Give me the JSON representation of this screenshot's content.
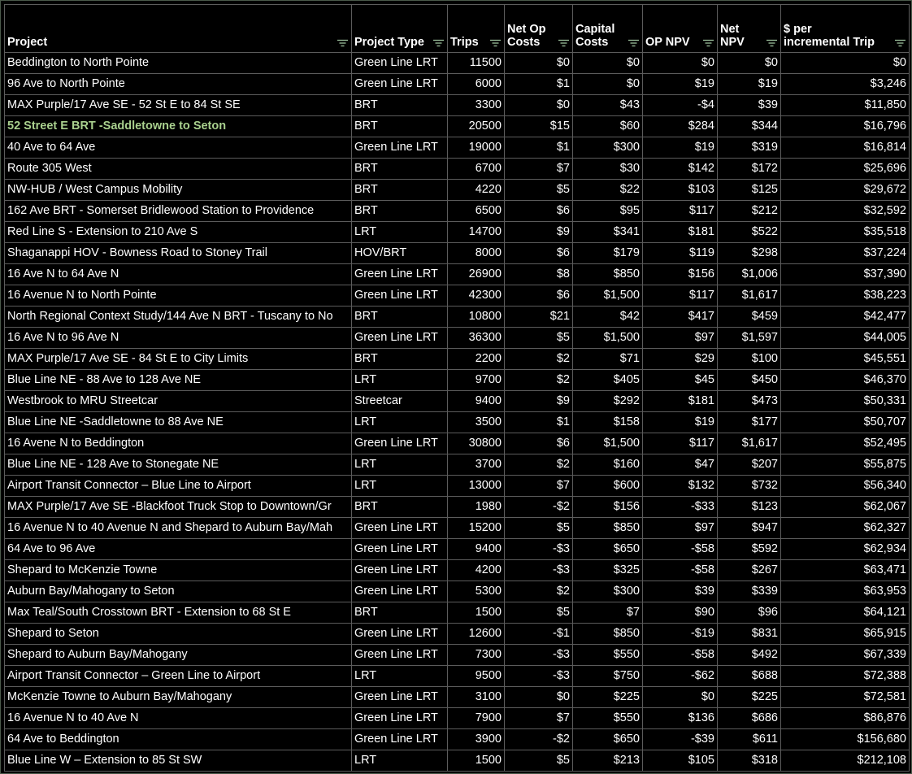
{
  "table": {
    "headers": [
      [
        "Project"
      ],
      [
        "Project Type"
      ],
      [
        "Trips"
      ],
      [
        "Net Op",
        "Costs"
      ],
      [
        "Capital",
        "Costs"
      ],
      [
        "OP NPV"
      ],
      [
        "Net",
        "NPV"
      ],
      [
        "$ per",
        "incremental Trip"
      ]
    ],
    "rows": [
      [
        "Beddington to North Pointe",
        "Green Line LRT",
        "11500",
        "$0",
        "$0",
        "$0",
        "$0",
        "$0"
      ],
      [
        "96 Ave to North Pointe",
        "Green Line LRT",
        "6000",
        "$1",
        "$0",
        "$19",
        "$19",
        "$3,246"
      ],
      [
        "MAX Purple/17 Ave SE - 52 St E to 84 St SE",
        "BRT",
        "3300",
        "$0",
        "$43",
        "-$4",
        "$39",
        "$11,850"
      ],
      [
        "52 Street E BRT -Saddletowne to Seton",
        "BRT",
        "20500",
        "$15",
        "$60",
        "$284",
        "$344",
        "$16,796"
      ],
      [
        "40 Ave to 64 Ave",
        "Green Line LRT",
        "19000",
        "$1",
        "$300",
        "$19",
        "$319",
        "$16,814"
      ],
      [
        "Route 305 West",
        "BRT",
        "6700",
        "$7",
        "$30",
        "$142",
        "$172",
        "$25,696"
      ],
      [
        "NW-HUB / West Campus Mobility",
        "BRT",
        "4220",
        "$5",
        "$22",
        "$103",
        "$125",
        "$29,672"
      ],
      [
        "162 Ave BRT - Somerset Bridlewood Station to Providence",
        "BRT",
        "6500",
        "$6",
        "$95",
        "$117",
        "$212",
        "$32,592"
      ],
      [
        "Red Line S - Extension to 210 Ave S",
        "LRT",
        "14700",
        "$9",
        "$341",
        "$181",
        "$522",
        "$35,518"
      ],
      [
        "Shaganappi HOV - Bowness Road to Stoney Trail",
        "HOV/BRT",
        "8000",
        "$6",
        "$179",
        "$119",
        "$298",
        "$37,224"
      ],
      [
        "16 Ave N to 64 Ave N",
        "Green Line LRT",
        "26900",
        "$8",
        "$850",
        "$156",
        "$1,006",
        "$37,390"
      ],
      [
        "16 Avenue N to North Pointe",
        "Green Line LRT",
        "42300",
        "$6",
        "$1,500",
        "$117",
        "$1,617",
        "$38,223"
      ],
      [
        "North Regional Context Study/144 Ave N BRT - Tuscany to No",
        "BRT",
        "10800",
        "$21",
        "$42",
        "$417",
        "$459",
        "$42,477"
      ],
      [
        "16 Ave N to 96 Ave N",
        "Green Line LRT",
        "36300",
        "$5",
        "$1,500",
        "$97",
        "$1,597",
        "$44,005"
      ],
      [
        "MAX Purple/17 Ave SE - 84 St E to City Limits",
        "BRT",
        "2200",
        "$2",
        "$71",
        "$29",
        "$100",
        "$45,551"
      ],
      [
        "Blue Line NE - 88 Ave to 128 Ave NE",
        "LRT",
        "9700",
        "$2",
        "$405",
        "$45",
        "$450",
        "$46,370"
      ],
      [
        "Westbrook to MRU Streetcar",
        "Streetcar",
        "9400",
        "$9",
        "$292",
        "$181",
        "$473",
        "$50,331"
      ],
      [
        "Blue Line NE -Saddletowne to 88 Ave NE",
        "LRT",
        "3500",
        "$1",
        "$158",
        "$19",
        "$177",
        "$50,707"
      ],
      [
        "16 Avene N to Beddington",
        "Green Line LRT",
        "30800",
        "$6",
        "$1,500",
        "$117",
        "$1,617",
        "$52,495"
      ],
      [
        "Blue Line NE - 128 Ave to Stonegate NE",
        "LRT",
        "3700",
        "$2",
        "$160",
        "$47",
        "$207",
        "$55,875"
      ],
      [
        "Airport Transit Connector – Blue Line to Airport",
        "LRT",
        "13000",
        "$7",
        "$600",
        "$132",
        "$732",
        "$56,340"
      ],
      [
        "MAX Purple/17 Ave SE -Blackfoot Truck Stop to Downtown/Gr",
        "BRT",
        "1980",
        "-$2",
        "$156",
        "-$33",
        "$123",
        "$62,067"
      ],
      [
        "16 Avenue N to 40 Avenue N and Shepard to Auburn Bay/Mah",
        "Green Line LRT",
        "15200",
        "$5",
        "$850",
        "$97",
        "$947",
        "$62,327"
      ],
      [
        "64 Ave to 96 Ave",
        "Green Line LRT",
        "9400",
        "-$3",
        "$650",
        "-$58",
        "$592",
        "$62,934"
      ],
      [
        "Shepard to McKenzie Towne",
        "Green Line LRT",
        "4200",
        "-$3",
        "$325",
        "-$58",
        "$267",
        "$63,471"
      ],
      [
        "Auburn Bay/Mahogany to Seton",
        "Green Line LRT",
        "5300",
        "$2",
        "$300",
        "$39",
        "$339",
        "$63,953"
      ],
      [
        "Max Teal/South Crosstown BRT - Extension to 68 St E",
        "BRT",
        "1500",
        "$5",
        "$7",
        "$90",
        "$96",
        "$64,121"
      ],
      [
        "Shepard to Seton",
        "Green Line LRT",
        "12600",
        "-$1",
        "$850",
        "-$19",
        "$831",
        "$65,915"
      ],
      [
        "Shepard to Auburn Bay/Mahogany",
        "Green Line LRT",
        "7300",
        "-$3",
        "$550",
        "-$58",
        "$492",
        "$67,339"
      ],
      [
        "Airport Transit Connector – Green Line to Airport",
        "LRT",
        "9500",
        "-$3",
        "$750",
        "-$62",
        "$688",
        "$72,388"
      ],
      [
        "McKenzie Towne to Auburn Bay/Mahogany",
        "Green Line LRT",
        "3100",
        "$0",
        "$225",
        "$0",
        "$225",
        "$72,581"
      ],
      [
        "16 Avenue N to 40 Ave N",
        "Green Line LRT",
        "7900",
        "$7",
        "$550",
        "$136",
        "$686",
        "$86,876"
      ],
      [
        "64 Ave to Beddington",
        "Green Line LRT",
        "3900",
        "-$2",
        "$650",
        "-$39",
        "$611",
        "$156,680"
      ],
      [
        "Blue Line W – Extension to 85 St SW",
        "LRT",
        "1500",
        "$5",
        "$213",
        "$105",
        "$318",
        "$212,108"
      ]
    ]
  }
}
